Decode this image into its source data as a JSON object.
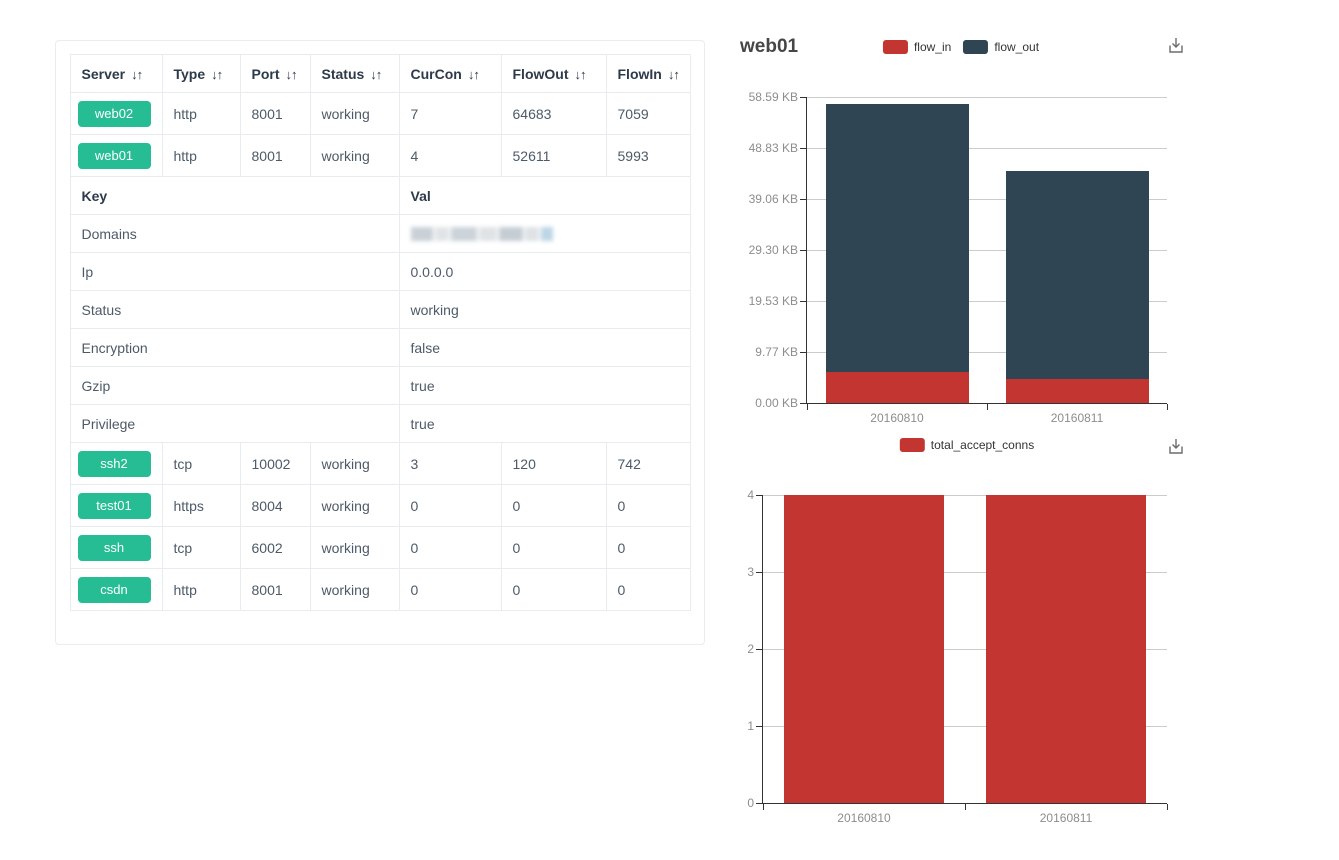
{
  "colors": {
    "badge_green": "#26bd95",
    "flow_in_red": "#c23531",
    "flow_out_dark": "#2f4554",
    "axis_line": "#333333",
    "gridline": "#cccccc",
    "axis_label": "#8d8d8d"
  },
  "icons": {
    "sort": "↓↑",
    "download": "download-icon"
  },
  "table": {
    "headers": [
      "Server",
      "Type",
      "Port",
      "Status",
      "CurCon",
      "FlowOut",
      "FlowIn"
    ],
    "rows_top": [
      {
        "server": "web02",
        "type": "http",
        "port": "8001",
        "status": "working",
        "curcon": "7",
        "flowout": "64683",
        "flowin": "7059"
      },
      {
        "server": "web01",
        "type": "http",
        "port": "8001",
        "status": "working",
        "curcon": "4",
        "flowout": "52611",
        "flowin": "5993"
      }
    ],
    "kv_header": {
      "key": "Key",
      "val": "Val"
    },
    "kv_rows": [
      {
        "key": "Domains",
        "val": "",
        "redacted": true
      },
      {
        "key": "Ip",
        "val": "0.0.0.0"
      },
      {
        "key": "Status",
        "val": "working"
      },
      {
        "key": "Encryption",
        "val": "false"
      },
      {
        "key": "Gzip",
        "val": "true"
      },
      {
        "key": "Privilege",
        "val": "true"
      }
    ],
    "rows_bottom": [
      {
        "server": "ssh2",
        "type": "tcp",
        "port": "10002",
        "status": "working",
        "curcon": "3",
        "flowout": "120",
        "flowin": "742"
      },
      {
        "server": "test01",
        "type": "https",
        "port": "8004",
        "status": "working",
        "curcon": "0",
        "flowout": "0",
        "flowin": "0"
      },
      {
        "server": "ssh",
        "type": "tcp",
        "port": "6002",
        "status": "working",
        "curcon": "0",
        "flowout": "0",
        "flowin": "0"
      },
      {
        "server": "csdn",
        "type": "http",
        "port": "8001",
        "status": "working",
        "curcon": "0",
        "flowout": "0",
        "flowin": "0"
      }
    ]
  },
  "chart_data": [
    {
      "type": "bar",
      "stacked": true,
      "title": "web01",
      "categories": [
        "20160810",
        "20160811"
      ],
      "series": [
        {
          "name": "flow_in",
          "color": "#c23531",
          "values": [
            5993,
            4700
          ]
        },
        {
          "name": "flow_out",
          "color": "#2f4554",
          "values": [
            52611,
            40800
          ]
        }
      ],
      "value_unit": "bytes",
      "y_axis": {
        "min": 0,
        "max": 60000,
        "tick_labels": [
          "0.00 KB",
          "9.77 KB",
          "19.53 KB",
          "29.30 KB",
          "39.06 KB",
          "48.83 KB",
          "58.59 KB"
        ]
      },
      "legend": [
        "flow_in",
        "flow_out"
      ],
      "legend_position": "top-center",
      "grid": true
    },
    {
      "type": "bar",
      "stacked": false,
      "title": "",
      "categories": [
        "20160810",
        "20160811"
      ],
      "series": [
        {
          "name": "total_accept_conns",
          "color": "#c23531",
          "values": [
            4,
            4
          ]
        }
      ],
      "y_axis": {
        "min": 0,
        "max": 4,
        "tick_labels": [
          "0",
          "1",
          "2",
          "3",
          "4"
        ]
      },
      "legend": [
        "total_accept_conns"
      ],
      "legend_position": "top-center",
      "grid": true
    }
  ]
}
